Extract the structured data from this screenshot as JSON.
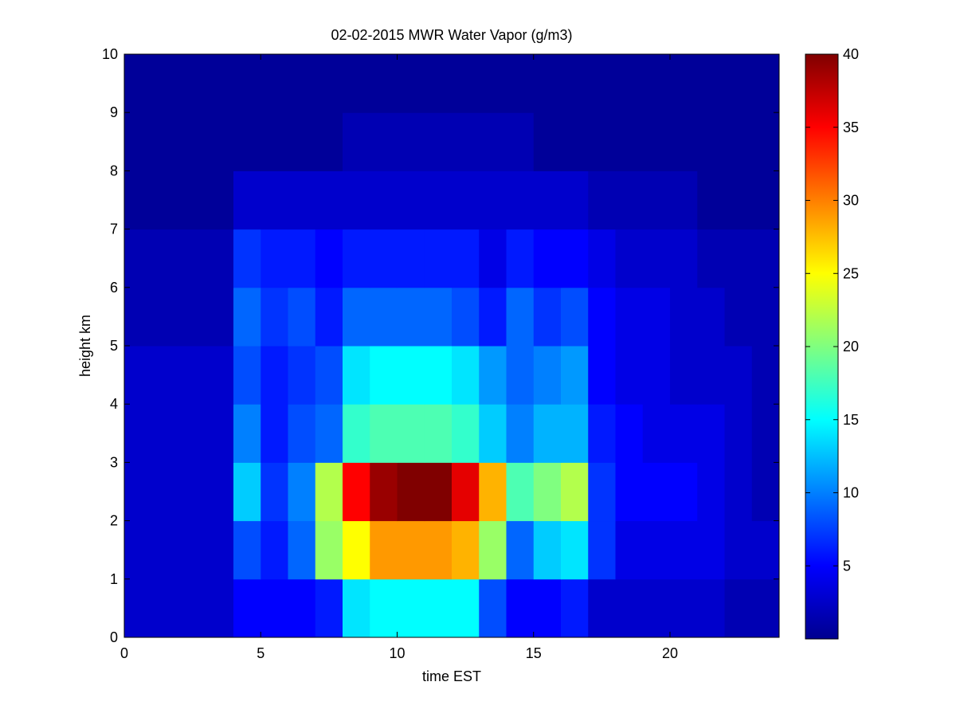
{
  "chart_data": {
    "type": "heatmap",
    "title": "02-02-2015 MWR Water Vapor (g/m3)",
    "xlabel": "time EST",
    "ylabel": "height km",
    "xlim": [
      0,
      24
    ],
    "ylim": [
      0,
      10
    ],
    "xticks": [
      "0",
      "5",
      "10",
      "15",
      "20"
    ],
    "yticks": [
      "0",
      "1",
      "2",
      "3",
      "4",
      "5",
      "6",
      "7",
      "8",
      "9",
      "10"
    ],
    "colorbar": {
      "colormap": "jet",
      "range": [
        0,
        40
      ],
      "ticks": [
        "5",
        "10",
        "15",
        "20",
        "25",
        "30",
        "35",
        "40"
      ]
    },
    "grid": false,
    "x": [
      0,
      1,
      2,
      3,
      4,
      5,
      6,
      7,
      8,
      9,
      10,
      11,
      12,
      13,
      14,
      15,
      16,
      17,
      18,
      19,
      20,
      21,
      22,
      23
    ],
    "y": [
      0,
      1,
      2,
      3,
      4,
      5,
      6,
      7,
      8,
      9
    ],
    "z": [
      [
        3,
        3,
        3,
        3,
        5,
        5,
        5,
        6,
        14,
        15,
        15,
        15,
        15,
        8,
        5,
        5,
        6,
        3,
        3,
        3,
        3,
        3,
        2,
        2
      ],
      [
        3,
        3,
        3,
        3,
        8,
        6,
        9,
        21,
        25,
        29,
        29,
        29,
        28,
        21,
        9,
        13,
        14,
        7,
        4,
        4,
        4,
        4,
        3,
        3
      ],
      [
        3,
        3,
        3,
        3,
        13,
        7,
        10,
        22,
        35,
        39,
        40,
        40,
        36,
        28,
        18,
        20,
        22,
        7,
        5,
        5,
        5,
        4,
        3,
        2
      ],
      [
        3,
        3,
        3,
        3,
        10,
        6,
        8,
        9,
        17,
        18,
        18,
        18,
        17,
        13,
        10,
        12,
        12,
        6,
        5,
        4,
        4,
        4,
        3,
        2
      ],
      [
        3,
        3,
        3,
        3,
        8,
        6,
        7,
        8,
        14,
        15,
        15,
        15,
        14,
        11,
        9,
        10,
        11,
        5,
        4,
        4,
        3,
        3,
        3,
        2
      ],
      [
        2,
        2,
        2,
        2,
        9,
        7,
        8,
        6,
        9,
        9,
        9,
        9,
        8,
        6,
        9,
        7,
        8,
        5,
        4,
        4,
        3,
        3,
        2,
        2
      ],
      [
        2,
        2,
        2,
        2,
        7,
        6,
        6,
        5,
        6,
        6,
        6,
        6,
        6,
        4,
        6,
        5,
        5,
        4,
        3,
        3,
        3,
        2,
        2,
        2
      ],
      [
        1,
        1,
        1,
        1,
        3,
        3,
        3,
        3,
        3,
        3,
        3,
        3,
        3,
        3,
        3,
        3,
        3,
        2,
        2,
        2,
        2,
        1,
        1,
        1
      ],
      [
        1,
        1,
        1,
        1,
        1,
        1,
        1,
        1,
        2,
        2,
        2,
        2,
        2,
        2,
        2,
        1,
        1,
        1,
        1,
        1,
        1,
        1,
        1,
        1
      ],
      [
        1,
        1,
        1,
        1,
        1,
        1,
        1,
        1,
        1,
        1,
        1,
        1,
        1,
        1,
        1,
        1,
        1,
        1,
        1,
        1,
        1,
        1,
        1,
        1
      ]
    ]
  }
}
